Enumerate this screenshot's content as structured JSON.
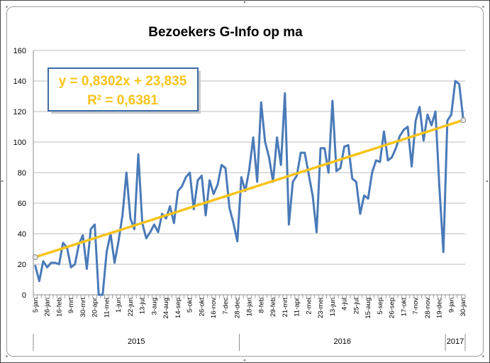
{
  "chart_data": {
    "type": "line",
    "title": "Bezoekers G-Info op ma",
    "ylim": [
      0,
      160
    ],
    "yticks": [
      "0",
      "20",
      "40",
      "60",
      "80",
      "100",
      "120",
      "140",
      "160"
    ],
    "x_labels": [
      "5-jan",
      "26-jan",
      "16-feb",
      "9-mrt",
      "30-mrt",
      "20-apr",
      "11-mei",
      "1-jun",
      "22-jun",
      "13-jul",
      "3-aug",
      "24-aug",
      "14-sep",
      "5-okt",
      "26-okt",
      "16-nov",
      "7-dec",
      "28-dec",
      "18-jan",
      "8-feb",
      "29-feb",
      "21-mrt",
      "11-apr",
      "2-mei",
      "23-mei",
      "13-jun",
      "4-jul",
      "25-jul",
      "15-aug",
      "5-sep",
      "26-sep",
      "17-okt",
      "7-nov",
      "28-nov",
      "19-dec",
      "9-jan",
      "30-jan"
    ],
    "years": [
      {
        "label": "2015",
        "start": 1,
        "end": 52
      },
      {
        "label": "2016",
        "start": 53,
        "end": 104
      },
      {
        "label": "2017",
        "start": 105,
        "end": 109
      }
    ],
    "series": [
      {
        "color": "#4a7ab8",
        "values": [
          19,
          9,
          22,
          18,
          21,
          21,
          20,
          34,
          31,
          18,
          20,
          33,
          39,
          17,
          43,
          46,
          0,
          0,
          28,
          40,
          21,
          35,
          52,
          80,
          50,
          43,
          92,
          47,
          37,
          41,
          46,
          41,
          53,
          50,
          58,
          47,
          68,
          71,
          77,
          80,
          56,
          75,
          78,
          52,
          75,
          66,
          72,
          85,
          83,
          57,
          47,
          35,
          77,
          68,
          82,
          103,
          74,
          126,
          100,
          90,
          74,
          103,
          85,
          132,
          46,
          74,
          78,
          93,
          93,
          79,
          65,
          41,
          96,
          96,
          80,
          127,
          81,
          83,
          97,
          98,
          76,
          74,
          53,
          65,
          63,
          80,
          88,
          87,
          107,
          88,
          90,
          96,
          104,
          108,
          110,
          84,
          114,
          123,
          101,
          118,
          111,
          120,
          70,
          28,
          114,
          118,
          140,
          138,
          115
        ]
      }
    ],
    "trendline": {
      "color": "#f7c31a",
      "slope": 0.8302,
      "intercept": 23.835,
      "equation": "y = 0,8302x + 23,835",
      "r_squared": "R² = 0,6381"
    },
    "grid": true,
    "legend": "none"
  }
}
